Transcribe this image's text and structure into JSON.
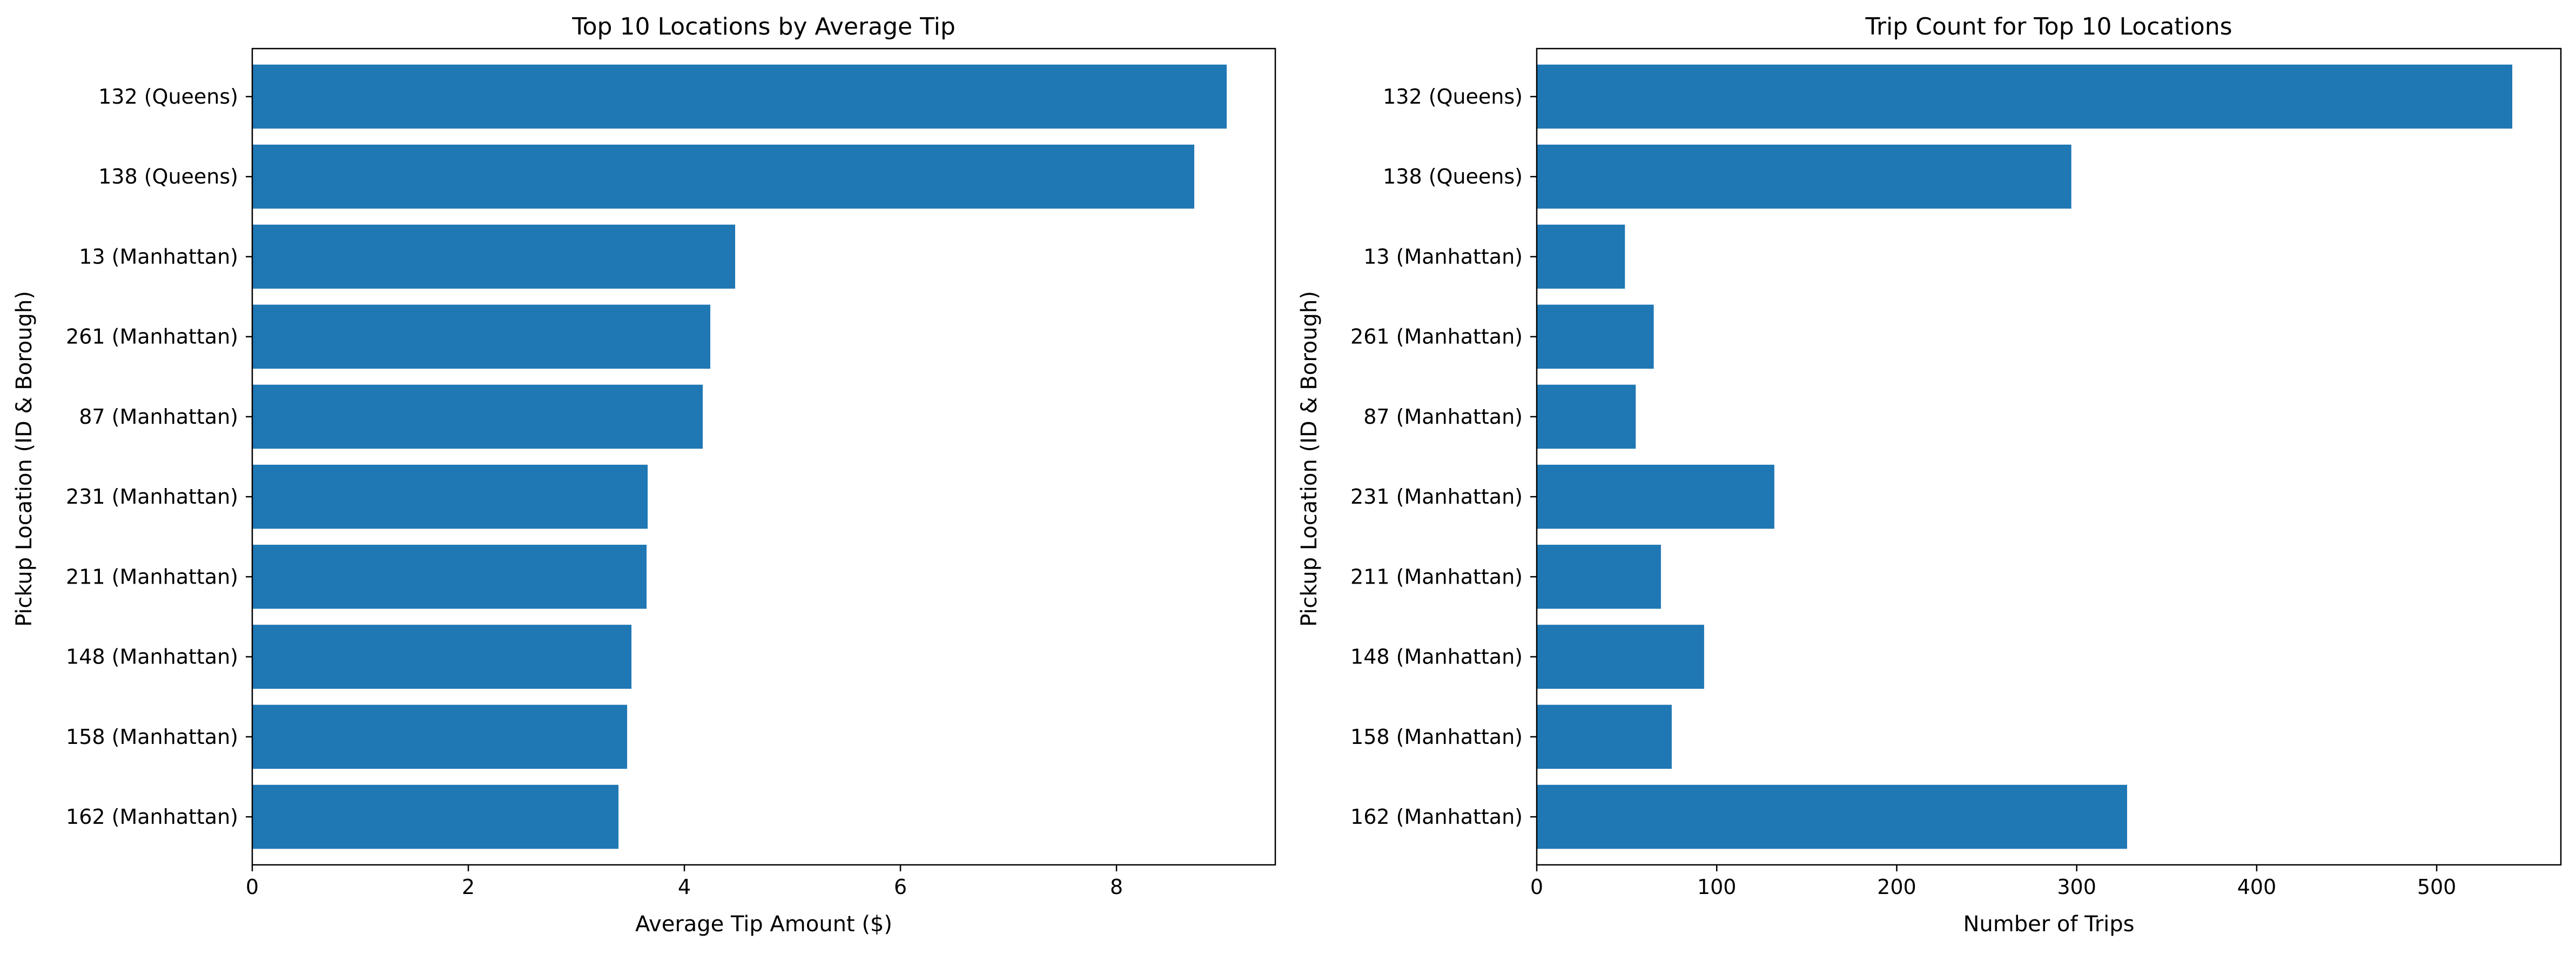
{
  "chart_data": [
    {
      "type": "bar",
      "orientation": "horizontal",
      "title": "Top 10 Locations by Average Tip",
      "xlabel": "Average Tip Amount ($)",
      "ylabel": "Pickup Location (ID & Borough)",
      "categories": [
        "132 (Queens)",
        "138 (Queens)",
        "13 (Manhattan)",
        "261 (Manhattan)",
        "87 (Manhattan)",
        "231 (Manhattan)",
        "211 (Manhattan)",
        "148 (Manhattan)",
        "158 (Manhattan)",
        "162 (Manhattan)"
      ],
      "values": [
        9.02,
        8.72,
        4.47,
        4.24,
        4.17,
        3.66,
        3.65,
        3.51,
        3.47,
        3.39
      ],
      "xlim": [
        0,
        9.47
      ],
      "xticks": [
        0,
        2,
        4,
        6,
        8
      ],
      "color": "#1f77b4",
      "grid": false
    },
    {
      "type": "bar",
      "orientation": "horizontal",
      "title": "Trip Count for Top 10 Locations",
      "xlabel": "Number of Trips",
      "ylabel": "Pickup Location (ID & Borough)",
      "categories": [
        "132 (Queens)",
        "138 (Queens)",
        "13 (Manhattan)",
        "261 (Manhattan)",
        "87 (Manhattan)",
        "231 (Manhattan)",
        "211 (Manhattan)",
        "148 (Manhattan)",
        "158 (Manhattan)",
        "162 (Manhattan)"
      ],
      "values": [
        542,
        297,
        49,
        65,
        55,
        132,
        69,
        93,
        75,
        328
      ],
      "xlim": [
        0,
        569
      ],
      "xticks": [
        0,
        100,
        200,
        300,
        400,
        500
      ],
      "color": "#1f77b4",
      "grid": false
    }
  ]
}
